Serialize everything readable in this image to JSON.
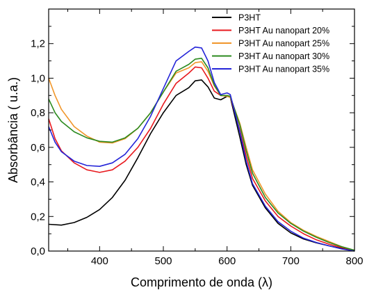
{
  "chart_data": {
    "type": "line",
    "xlabel": "Comprimento de onda (λ)",
    "ylabel": "Absorbância (  u.a.)",
    "xlim": [
      320,
      800
    ],
    "ylim": [
      0,
      1.4
    ],
    "x_ticks": [
      400,
      500,
      600,
      700,
      800
    ],
    "y_ticks": [
      0.0,
      0.2,
      0.4,
      0.6,
      0.8,
      1.0,
      1.2
    ],
    "x_tick_labels": [
      "400",
      "500",
      "600",
      "700",
      "800"
    ],
    "y_tick_labels": [
      "0,0",
      "0,2",
      "0,4",
      "0,6",
      "0,8",
      "1,0",
      "1,2"
    ],
    "legend_position": "top-right",
    "grid": false,
    "series": [
      {
        "name": "P3HT",
        "color": "#000000",
        "points": [
          [
            320,
            0.155
          ],
          [
            340,
            0.15
          ],
          [
            360,
            0.165
          ],
          [
            380,
            0.195
          ],
          [
            400,
            0.24
          ],
          [
            420,
            0.31
          ],
          [
            440,
            0.41
          ],
          [
            460,
            0.54
          ],
          [
            480,
            0.68
          ],
          [
            500,
            0.8
          ],
          [
            520,
            0.9
          ],
          [
            540,
            0.945
          ],
          [
            550,
            0.985
          ],
          [
            560,
            0.99
          ],
          [
            570,
            0.95
          ],
          [
            580,
            0.885
          ],
          [
            590,
            0.875
          ],
          [
            600,
            0.895
          ],
          [
            605,
            0.89
          ],
          [
            620,
            0.66
          ],
          [
            630,
            0.5
          ],
          [
            640,
            0.38
          ],
          [
            660,
            0.25
          ],
          [
            680,
            0.16
          ],
          [
            700,
            0.105
          ],
          [
            720,
            0.07
          ],
          [
            740,
            0.048
          ],
          [
            760,
            0.03
          ],
          [
            780,
            0.015
          ],
          [
            800,
            0.0
          ]
        ]
      },
      {
        "name": "P3HT Au nanopart 20%",
        "color": "#e8191e",
        "points": [
          [
            320,
            0.765
          ],
          [
            330,
            0.65
          ],
          [
            340,
            0.58
          ],
          [
            360,
            0.51
          ],
          [
            380,
            0.47
          ],
          [
            400,
            0.455
          ],
          [
            420,
            0.47
          ],
          [
            440,
            0.52
          ],
          [
            460,
            0.6
          ],
          [
            480,
            0.71
          ],
          [
            500,
            0.85
          ],
          [
            520,
            0.97
          ],
          [
            540,
            1.03
          ],
          [
            550,
            1.065
          ],
          [
            560,
            1.06
          ],
          [
            570,
            1.0
          ],
          [
            580,
            0.925
          ],
          [
            590,
            0.9
          ],
          [
            600,
            0.9
          ],
          [
            605,
            0.895
          ],
          [
            620,
            0.7
          ],
          [
            630,
            0.55
          ],
          [
            640,
            0.42
          ],
          [
            660,
            0.29
          ],
          [
            680,
            0.2
          ],
          [
            700,
            0.145
          ],
          [
            720,
            0.1
          ],
          [
            740,
            0.065
          ],
          [
            760,
            0.04
          ],
          [
            780,
            0.02
          ],
          [
            800,
            0.005
          ]
        ]
      },
      {
        "name": "P3HT Au nanopart 25%",
        "color": "#f0962a",
        "points": [
          [
            320,
            1.0
          ],
          [
            330,
            0.9
          ],
          [
            340,
            0.82
          ],
          [
            360,
            0.72
          ],
          [
            380,
            0.665
          ],
          [
            400,
            0.63
          ],
          [
            420,
            0.625
          ],
          [
            440,
            0.65
          ],
          [
            460,
            0.71
          ],
          [
            480,
            0.8
          ],
          [
            500,
            0.92
          ],
          [
            520,
            1.03
          ],
          [
            540,
            1.06
          ],
          [
            550,
            1.09
          ],
          [
            560,
            1.095
          ],
          [
            570,
            1.04
          ],
          [
            580,
            0.955
          ],
          [
            590,
            0.9
          ],
          [
            600,
            0.895
          ],
          [
            605,
            0.89
          ],
          [
            620,
            0.74
          ],
          [
            630,
            0.6
          ],
          [
            640,
            0.47
          ],
          [
            660,
            0.33
          ],
          [
            680,
            0.23
          ],
          [
            700,
            0.165
          ],
          [
            720,
            0.12
          ],
          [
            740,
            0.085
          ],
          [
            760,
            0.055
          ],
          [
            780,
            0.025
          ],
          [
            800,
            0.005
          ]
        ]
      },
      {
        "name": "P3HT Au nanopart 30%",
        "color": "#2b8a1e",
        "points": [
          [
            320,
            0.88
          ],
          [
            330,
            0.8
          ],
          [
            340,
            0.75
          ],
          [
            360,
            0.69
          ],
          [
            380,
            0.655
          ],
          [
            400,
            0.635
          ],
          [
            420,
            0.63
          ],
          [
            440,
            0.655
          ],
          [
            460,
            0.71
          ],
          [
            480,
            0.8
          ],
          [
            500,
            0.92
          ],
          [
            520,
            1.04
          ],
          [
            540,
            1.08
          ],
          [
            550,
            1.11
          ],
          [
            560,
            1.115
          ],
          [
            570,
            1.06
          ],
          [
            580,
            0.96
          ],
          [
            590,
            0.9
          ],
          [
            600,
            0.9
          ],
          [
            605,
            0.895
          ],
          [
            620,
            0.73
          ],
          [
            630,
            0.58
          ],
          [
            640,
            0.45
          ],
          [
            660,
            0.31
          ],
          [
            680,
            0.22
          ],
          [
            700,
            0.16
          ],
          [
            720,
            0.115
          ],
          [
            740,
            0.08
          ],
          [
            760,
            0.05
          ],
          [
            780,
            0.025
          ],
          [
            800,
            0.005
          ]
        ]
      },
      {
        "name": "P3HT Au nanopart 35%",
        "color": "#2424d8",
        "points": [
          [
            320,
            0.72
          ],
          [
            330,
            0.63
          ],
          [
            340,
            0.575
          ],
          [
            360,
            0.52
          ],
          [
            380,
            0.495
          ],
          [
            400,
            0.49
          ],
          [
            420,
            0.51
          ],
          [
            440,
            0.56
          ],
          [
            460,
            0.65
          ],
          [
            480,
            0.78
          ],
          [
            500,
            0.94
          ],
          [
            520,
            1.1
          ],
          [
            540,
            1.155
          ],
          [
            550,
            1.18
          ],
          [
            560,
            1.175
          ],
          [
            570,
            1.1
          ],
          [
            580,
            0.975
          ],
          [
            590,
            0.905
          ],
          [
            600,
            0.915
          ],
          [
            605,
            0.905
          ],
          [
            620,
            0.69
          ],
          [
            630,
            0.52
          ],
          [
            640,
            0.39
          ],
          [
            660,
            0.26
          ],
          [
            680,
            0.17
          ],
          [
            700,
            0.115
          ],
          [
            720,
            0.075
          ],
          [
            740,
            0.05
          ],
          [
            760,
            0.03
          ],
          [
            780,
            0.012
          ],
          [
            800,
            0.0
          ]
        ]
      }
    ]
  }
}
